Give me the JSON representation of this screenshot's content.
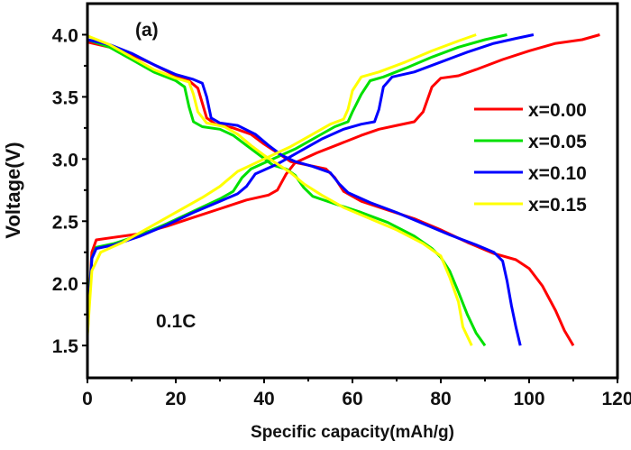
{
  "chart_data": {
    "type": "line",
    "title": "",
    "panel_label": "(a)",
    "annotation": "0.1C",
    "xlabel": "Specific capacity(mAh/g)",
    "ylabel": "Voltage(V)",
    "xlim": [
      0,
      120
    ],
    "ylim": [
      1.24,
      4.25
    ],
    "xticks": [
      0,
      20,
      40,
      60,
      80,
      100,
      120
    ],
    "xtick_labels": [
      "0",
      "20",
      "40",
      "60",
      "80",
      "100",
      "120"
    ],
    "yticks": [
      1.5,
      2.0,
      2.5,
      3.0,
      3.5,
      4.0
    ],
    "ytick_labels": [
      "1.5",
      "2.0",
      "2.5",
      "3.0",
      "3.5",
      "4.0"
    ],
    "grid": false,
    "legend_position": "center-right",
    "series": [
      {
        "name": "x=0.00",
        "color": "#ff0000",
        "discharge": [
          [
            0,
            3.94
          ],
          [
            5,
            3.9
          ],
          [
            10,
            3.84
          ],
          [
            15,
            3.76
          ],
          [
            20,
            3.67
          ],
          [
            23,
            3.63
          ],
          [
            25,
            3.57
          ],
          [
            26,
            3.45
          ],
          [
            27,
            3.33
          ],
          [
            29,
            3.28
          ],
          [
            33,
            3.25
          ],
          [
            37,
            3.2
          ],
          [
            40,
            3.12
          ],
          [
            43,
            3.05
          ],
          [
            46,
            2.98
          ],
          [
            50,
            2.95
          ],
          [
            54,
            2.92
          ],
          [
            56,
            2.85
          ],
          [
            58,
            2.74
          ],
          [
            62,
            2.66
          ],
          [
            68,
            2.59
          ],
          [
            74,
            2.52
          ],
          [
            80,
            2.43
          ],
          [
            86,
            2.33
          ],
          [
            92,
            2.24
          ],
          [
            97,
            2.19
          ],
          [
            100,
            2.12
          ],
          [
            103,
            1.98
          ],
          [
            106,
            1.78
          ],
          [
            108,
            1.62
          ],
          [
            110,
            1.5
          ]
        ],
        "charge": [
          [
            0,
            1.62
          ],
          [
            0.5,
            1.95
          ],
          [
            1,
            2.25
          ],
          [
            2,
            2.35
          ],
          [
            6,
            2.37
          ],
          [
            12,
            2.4
          ],
          [
            18,
            2.46
          ],
          [
            24,
            2.53
          ],
          [
            30,
            2.6
          ],
          [
            36,
            2.67
          ],
          [
            41,
            2.71
          ],
          [
            43,
            2.75
          ],
          [
            45,
            2.88
          ],
          [
            47,
            2.97
          ],
          [
            52,
            3.05
          ],
          [
            57,
            3.12
          ],
          [
            62,
            3.19
          ],
          [
            66,
            3.24
          ],
          [
            70,
            3.27
          ],
          [
            74,
            3.3
          ],
          [
            76,
            3.38
          ],
          [
            78,
            3.58
          ],
          [
            80,
            3.65
          ],
          [
            84,
            3.67
          ],
          [
            88,
            3.72
          ],
          [
            94,
            3.8
          ],
          [
            100,
            3.87
          ],
          [
            106,
            3.93
          ],
          [
            112,
            3.96
          ],
          [
            116,
            4.0
          ]
        ]
      },
      {
        "name": "x=0.05",
        "color": "#00e000",
        "discharge": [
          [
            0,
            3.96
          ],
          [
            5,
            3.9
          ],
          [
            10,
            3.8
          ],
          [
            15,
            3.7
          ],
          [
            20,
            3.63
          ],
          [
            22,
            3.58
          ],
          [
            23,
            3.42
          ],
          [
            24,
            3.3
          ],
          [
            26,
            3.26
          ],
          [
            30,
            3.24
          ],
          [
            33,
            3.19
          ],
          [
            36,
            3.11
          ],
          [
            39,
            3.03
          ],
          [
            42,
            2.95
          ],
          [
            45,
            2.92
          ],
          [
            47,
            2.87
          ],
          [
            49,
            2.77
          ],
          [
            51,
            2.7
          ],
          [
            56,
            2.64
          ],
          [
            62,
            2.57
          ],
          [
            68,
            2.49
          ],
          [
            74,
            2.38
          ],
          [
            78,
            2.28
          ],
          [
            80,
            2.21
          ],
          [
            82,
            2.1
          ],
          [
            84,
            1.93
          ],
          [
            86,
            1.75
          ],
          [
            88,
            1.6
          ],
          [
            90,
            1.5
          ]
        ],
        "charge": [
          [
            0,
            1.65
          ],
          [
            0.5,
            1.95
          ],
          [
            1,
            2.2
          ],
          [
            2,
            2.29
          ],
          [
            6,
            2.32
          ],
          [
            12,
            2.39
          ],
          [
            18,
            2.48
          ],
          [
            24,
            2.58
          ],
          [
            30,
            2.68
          ],
          [
            33,
            2.74
          ],
          [
            35,
            2.85
          ],
          [
            37,
            2.92
          ],
          [
            42,
            3.0
          ],
          [
            47,
            3.08
          ],
          [
            52,
            3.18
          ],
          [
            56,
            3.26
          ],
          [
            59,
            3.3
          ],
          [
            60,
            3.38
          ],
          [
            62,
            3.52
          ],
          [
            64,
            3.63
          ],
          [
            67,
            3.66
          ],
          [
            72,
            3.73
          ],
          [
            78,
            3.82
          ],
          [
            84,
            3.9
          ],
          [
            90,
            3.96
          ],
          [
            95,
            4.0
          ]
        ]
      },
      {
        "name": "x=0.10",
        "color": "#0000ff",
        "discharge": [
          [
            0,
            3.96
          ],
          [
            5,
            3.92
          ],
          [
            10,
            3.85
          ],
          [
            15,
            3.76
          ],
          [
            20,
            3.68
          ],
          [
            24,
            3.64
          ],
          [
            26,
            3.61
          ],
          [
            27,
            3.5
          ],
          [
            28,
            3.33
          ],
          [
            30,
            3.29
          ],
          [
            34,
            3.27
          ],
          [
            38,
            3.2
          ],
          [
            41,
            3.11
          ],
          [
            44,
            3.03
          ],
          [
            47,
            2.98
          ],
          [
            51,
            2.94
          ],
          [
            55,
            2.89
          ],
          [
            57,
            2.8
          ],
          [
            59,
            2.73
          ],
          [
            64,
            2.65
          ],
          [
            70,
            2.57
          ],
          [
            76,
            2.48
          ],
          [
            82,
            2.39
          ],
          [
            88,
            2.31
          ],
          [
            92,
            2.25
          ],
          [
            94,
            2.18
          ],
          [
            95,
            2.02
          ],
          [
            96,
            1.82
          ],
          [
            97,
            1.65
          ],
          [
            98,
            1.5
          ]
        ],
        "charge": [
          [
            0,
            1.6
          ],
          [
            0.5,
            1.9
          ],
          [
            1,
            2.2
          ],
          [
            2,
            2.28
          ],
          [
            6,
            2.31
          ],
          [
            12,
            2.38
          ],
          [
            18,
            2.47
          ],
          [
            24,
            2.57
          ],
          [
            30,
            2.66
          ],
          [
            34,
            2.72
          ],
          [
            36,
            2.78
          ],
          [
            38,
            2.88
          ],
          [
            43,
            2.96
          ],
          [
            48,
            3.06
          ],
          [
            53,
            3.16
          ],
          [
            58,
            3.24
          ],
          [
            62,
            3.28
          ],
          [
            65,
            3.3
          ],
          [
            66,
            3.4
          ],
          [
            67,
            3.58
          ],
          [
            69,
            3.66
          ],
          [
            74,
            3.7
          ],
          [
            80,
            3.78
          ],
          [
            86,
            3.86
          ],
          [
            92,
            3.93
          ],
          [
            97,
            3.97
          ],
          [
            101,
            4.0
          ]
        ]
      },
      {
        "name": "x=0.15",
        "color": "#ffff00",
        "discharge": [
          [
            0,
            3.99
          ],
          [
            5,
            3.92
          ],
          [
            10,
            3.82
          ],
          [
            15,
            3.72
          ],
          [
            20,
            3.65
          ],
          [
            23,
            3.62
          ],
          [
            24,
            3.52
          ],
          [
            25,
            3.38
          ],
          [
            27,
            3.29
          ],
          [
            31,
            3.26
          ],
          [
            34,
            3.2
          ],
          [
            37,
            3.11
          ],
          [
            40,
            3.03
          ],
          [
            43,
            2.96
          ],
          [
            46,
            2.89
          ],
          [
            49,
            2.8
          ],
          [
            53,
            2.71
          ],
          [
            58,
            2.61
          ],
          [
            64,
            2.52
          ],
          [
            70,
            2.43
          ],
          [
            76,
            2.32
          ],
          [
            80,
            2.22
          ],
          [
            82,
            2.05
          ],
          [
            84,
            1.85
          ],
          [
            85,
            1.65
          ],
          [
            87,
            1.5
          ]
        ],
        "charge": [
          [
            0,
            1.58
          ],
          [
            0.5,
            1.85
          ],
          [
            1,
            2.1
          ],
          [
            3,
            2.25
          ],
          [
            8,
            2.33
          ],
          [
            14,
            2.45
          ],
          [
            20,
            2.57
          ],
          [
            26,
            2.69
          ],
          [
            30,
            2.78
          ],
          [
            34,
            2.9
          ],
          [
            40,
            3.0
          ],
          [
            46,
            3.1
          ],
          [
            51,
            3.2
          ],
          [
            55,
            3.28
          ],
          [
            58,
            3.32
          ],
          [
            59,
            3.4
          ],
          [
            60,
            3.55
          ],
          [
            62,
            3.66
          ],
          [
            66,
            3.7
          ],
          [
            72,
            3.78
          ],
          [
            78,
            3.87
          ],
          [
            84,
            3.95
          ],
          [
            88,
            4.0
          ]
        ]
      }
    ]
  }
}
